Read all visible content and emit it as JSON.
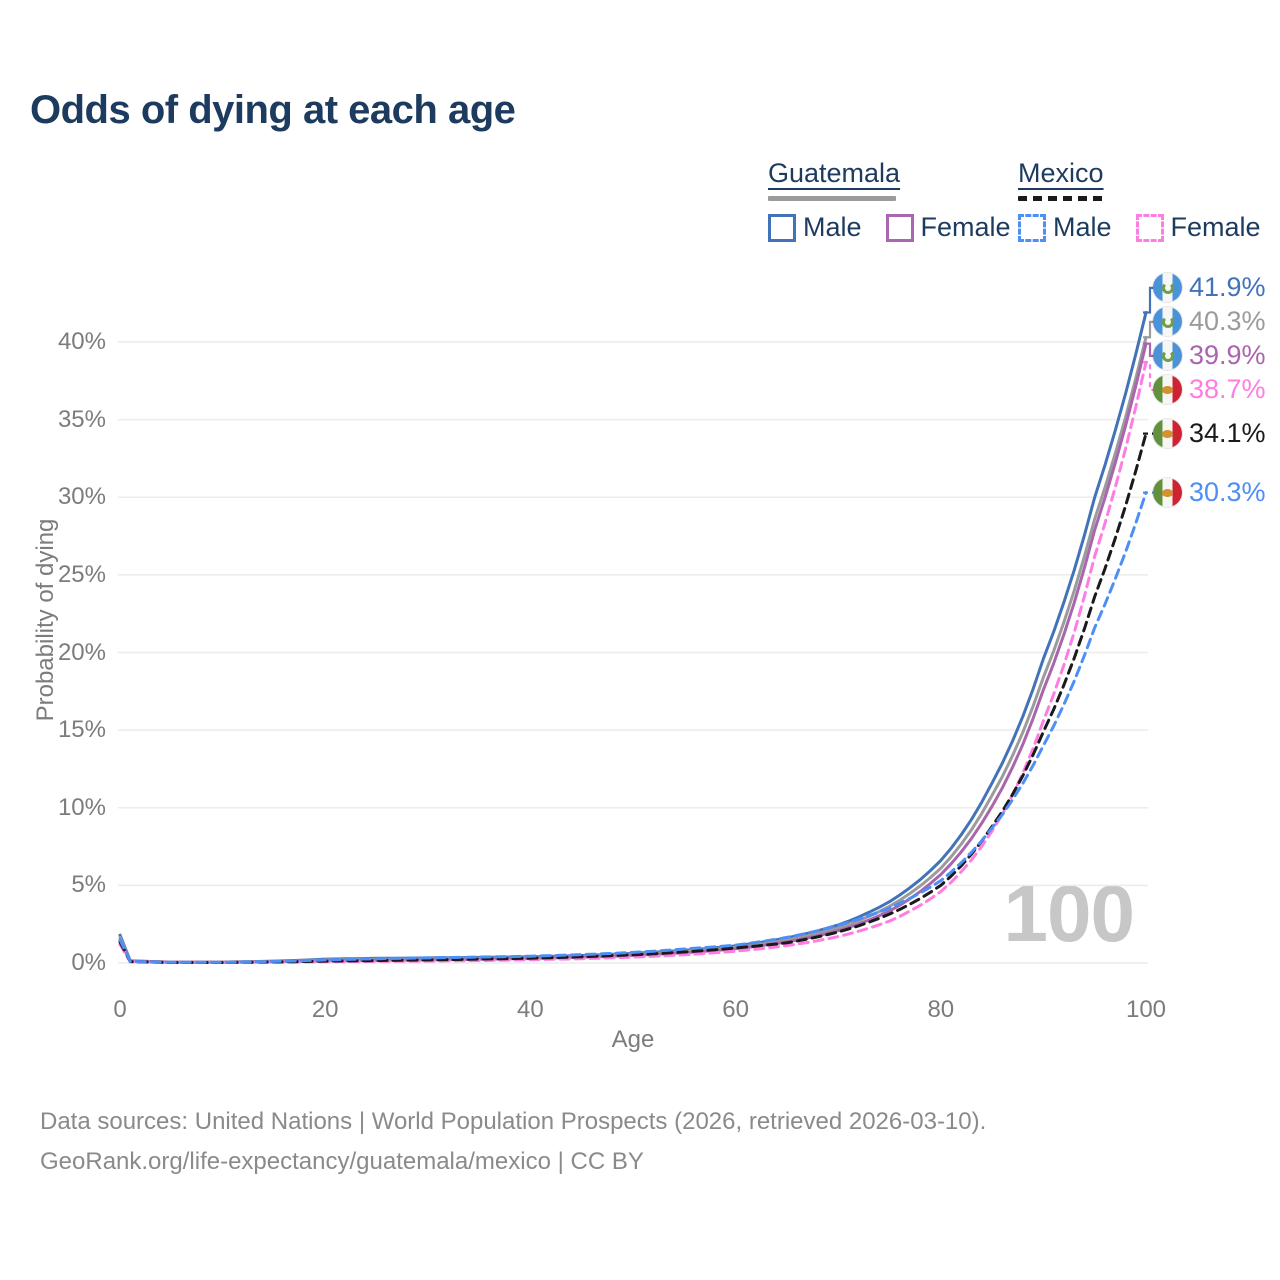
{
  "title": "Odds of dying at each age",
  "watermark": "100",
  "legend": {
    "groups": [
      {
        "label": "Guatemala",
        "line_style": "solid",
        "line_color": "#9b9b9b",
        "items": [
          {
            "label": "Male",
            "color": "#4273b8",
            "dashed": false
          },
          {
            "label": "Female",
            "color": "#a965ad",
            "dashed": false
          }
        ]
      },
      {
        "label": "Mexico",
        "line_style": "dashed",
        "line_color": "#1a1a1a",
        "items": [
          {
            "label": "Male",
            "color": "#4e8ef7",
            "dashed": true
          },
          {
            "label": "Female",
            "color": "#ff7ce3",
            "dashed": true
          }
        ]
      }
    ]
  },
  "chart_data": {
    "type": "line",
    "title": "Odds of dying at each age",
    "xlabel": "Age",
    "ylabel": "Probability of dying",
    "xlim": [
      0,
      100
    ],
    "ylim": [
      0,
      43.5
    ],
    "grid": "horizontal",
    "x_ticks": [
      0,
      20,
      40,
      60,
      80,
      100
    ],
    "y_ticks": [
      "0%",
      "5%",
      "10%",
      "15%",
      "20%",
      "25%",
      "30%",
      "35%",
      "40%"
    ],
    "legend_position": "top-right",
    "ages": [
      0,
      1,
      5,
      10,
      15,
      20,
      25,
      30,
      35,
      40,
      45,
      50,
      55,
      60,
      65,
      70,
      75,
      80,
      85,
      90,
      95,
      100
    ],
    "series": [
      {
        "name": "Guatemala Male",
        "country": "Guatemala",
        "sex": "Male",
        "color": "#4273b8",
        "dashed": false,
        "flag": "guatemala",
        "end_label": "41.9%",
        "end_value": 41.9,
        "values": [
          1.8,
          0.15,
          0.06,
          0.06,
          0.12,
          0.25,
          0.3,
          0.33,
          0.36,
          0.4,
          0.48,
          0.62,
          0.82,
          1.1,
          1.62,
          2.45,
          3.95,
          6.6,
          11.6,
          19.6,
          30.0,
          41.9
        ]
      },
      {
        "name": "Guatemala Both sexes",
        "country": "Guatemala",
        "sex": "Both",
        "color": "#9b9b9b",
        "dashed": false,
        "flag": "guatemala",
        "end_label": "40.3%",
        "end_value": 40.3,
        "values": [
          1.65,
          0.13,
          0.055,
          0.055,
          0.1,
          0.2,
          0.24,
          0.27,
          0.3,
          0.34,
          0.42,
          0.55,
          0.74,
          1.0,
          1.48,
          2.25,
          3.65,
          6.1,
          10.8,
          18.4,
          28.6,
          40.3
        ]
      },
      {
        "name": "Guatemala Female",
        "country": "Guatemala",
        "sex": "Female",
        "color": "#a965ad",
        "dashed": false,
        "flag": "guatemala",
        "end_label": "39.9%",
        "end_value": 39.9,
        "values": [
          1.5,
          0.12,
          0.05,
          0.05,
          0.08,
          0.14,
          0.17,
          0.2,
          0.24,
          0.29,
          0.37,
          0.49,
          0.66,
          0.92,
          1.36,
          2.08,
          3.35,
          5.7,
          10.1,
          17.6,
          27.9,
          39.9
        ]
      },
      {
        "name": "Mexico Female",
        "country": "Mexico",
        "sex": "Female",
        "color": "#ff7ce3",
        "dashed": true,
        "flag": "mexico",
        "end_label": "38.7%",
        "end_value": 38.7,
        "values": [
          1.2,
          0.08,
          0.03,
          0.03,
          0.05,
          0.08,
          0.1,
          0.12,
          0.16,
          0.21,
          0.28,
          0.38,
          0.53,
          0.76,
          1.12,
          1.7,
          2.7,
          4.6,
          8.5,
          15.6,
          26.2,
          38.7
        ]
      },
      {
        "name": "Mexico Both sexes",
        "country": "Mexico",
        "sex": "Both",
        "color": "#1a1a1a",
        "dashed": true,
        "flag": "mexico",
        "end_label": "34.1%",
        "end_value": 34.1,
        "values": [
          1.35,
          0.09,
          0.035,
          0.035,
          0.07,
          0.12,
          0.16,
          0.2,
          0.25,
          0.31,
          0.4,
          0.53,
          0.71,
          0.97,
          1.3,
          2.0,
          3.15,
          5.0,
          8.8,
          14.9,
          23.6,
          34.1
        ]
      },
      {
        "name": "Mexico Male",
        "country": "Mexico",
        "sex": "Male",
        "color": "#4e8ef7",
        "dashed": true,
        "flag": "mexico",
        "end_label": "30.3%",
        "end_value": 30.3,
        "values": [
          1.5,
          0.1,
          0.04,
          0.04,
          0.1,
          0.2,
          0.28,
          0.33,
          0.38,
          0.44,
          0.54,
          0.68,
          0.9,
          1.15,
          1.65,
          2.42,
          3.55,
          5.3,
          8.7,
          14.0,
          21.6,
          30.3
        ]
      }
    ]
  },
  "footer": {
    "line1": "Data sources: United Nations | World Population Prospects (2026, retrieved 2026-03-10).",
    "line2": "GeoRank.org/life-expectancy/guatemala/mexico | CC BY"
  }
}
